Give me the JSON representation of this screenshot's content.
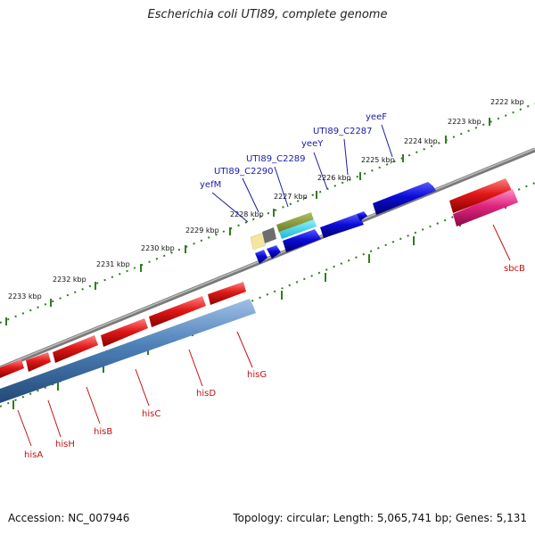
{
  "title": "Escherichia coli UTI89, complete genome",
  "footer": {
    "accession": "Accession: NC_007946",
    "summary": "Topology: circular; Length: 5,065,741 bp; Genes: 5,131"
  },
  "colors": {
    "backbone": "#8a8a8a",
    "tick_track": "#2f7d1f",
    "forward_gene": "#0b0bd8",
    "reverse_gene": "#e01818",
    "reverse_cds": "#4d80b8",
    "pink_gene": "#e0257e",
    "label_blue": "#1a1aa6",
    "label_red": "#c41010"
  },
  "tick_labels": [
    "2222 kbp",
    "2223 kbp",
    "2224 kbp",
    "2225 kbp",
    "2226 kbp",
    "2227 kbp",
    "2228 kbp",
    "2229 kbp",
    "2230 kbp",
    "2231 kbp",
    "2232 kbp",
    "2233 kbp"
  ],
  "top_genes": [
    "yeeF",
    "UTI89_C2287",
    "yeeY",
    "UTI89_C2289",
    "UTI89_C2290",
    "yefM"
  ],
  "bottom_genes": [
    "sbcB",
    "hisG",
    "hisD",
    "hisC",
    "hisB",
    "hisH",
    "hisA"
  ]
}
